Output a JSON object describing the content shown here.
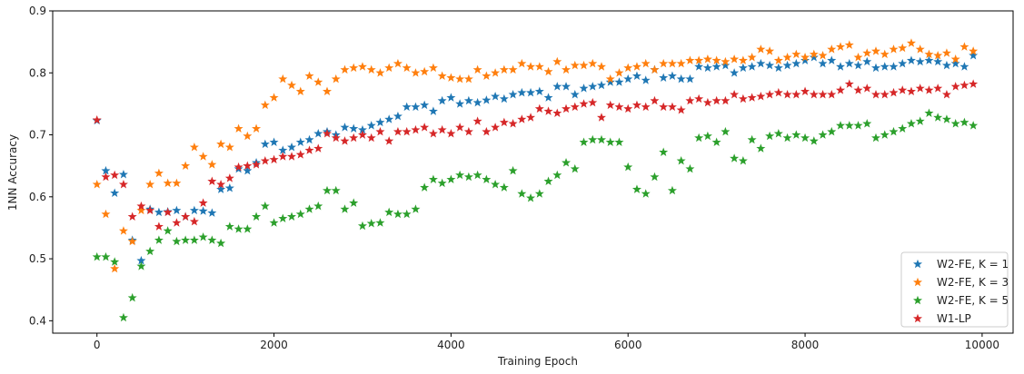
{
  "chart_data": {
    "type": "scatter",
    "title": "",
    "xlabel": "Training Epoch",
    "ylabel": "1NN Accuracy",
    "xlim": [
      -500,
      10350
    ],
    "ylim": [
      0.38,
      0.9
    ],
    "xticks": [
      0,
      2000,
      4000,
      6000,
      8000,
      10000
    ],
    "yticks": [
      0.4,
      0.5,
      0.6,
      0.7,
      0.8,
      0.9
    ],
    "xtick_labels": [
      "0",
      "2000",
      "4000",
      "6000",
      "8000",
      "10000"
    ],
    "ytick_labels": [
      "0.4",
      "0.5",
      "0.6",
      "0.7",
      "0.8",
      "0.9"
    ],
    "grid": false,
    "legend_position": "lower-right",
    "marker": "star",
    "x": [
      0,
      100,
      200,
      300,
      400,
      500,
      600,
      700,
      800,
      900,
      1000,
      1100,
      1200,
      1300,
      1400,
      1500,
      1600,
      1700,
      1800,
      1900,
      2000,
      2100,
      2200,
      2300,
      2400,
      2500,
      2600,
      2700,
      2800,
      2900,
      3000,
      3100,
      3200,
      3300,
      3400,
      3500,
      3600,
      3700,
      3800,
      3900,
      4000,
      4100,
      4200,
      4300,
      4400,
      4500,
      4600,
      4700,
      4800,
      4900,
      5000,
      5100,
      5200,
      5300,
      5400,
      5500,
      5600,
      5700,
      5800,
      5900,
      6000,
      6100,
      6200,
      6300,
      6400,
      6500,
      6600,
      6700,
      6800,
      6900,
      7000,
      7100,
      7200,
      7300,
      7400,
      7500,
      7600,
      7700,
      7800,
      7900,
      8000,
      8100,
      8200,
      8300,
      8400,
      8500,
      8600,
      8700,
      8800,
      8900,
      9000,
      9100,
      9200,
      9300,
      9400,
      9500,
      9600,
      9700,
      9800,
      9900
    ],
    "series": [
      {
        "name": "W2-FE, K = 1",
        "color": "#1f77b4",
        "values": [
          0.723,
          0.642,
          0.606,
          0.636,
          0.53,
          0.497,
          0.58,
          0.575,
          0.576,
          0.578,
          0.568,
          0.578,
          0.577,
          0.574,
          0.612,
          0.614,
          0.645,
          0.642,
          0.655,
          0.685,
          0.688,
          0.675,
          0.68,
          0.688,
          0.692,
          0.702,
          0.705,
          0.7,
          0.712,
          0.71,
          0.708,
          0.715,
          0.72,
          0.725,
          0.73,
          0.745,
          0.745,
          0.748,
          0.738,
          0.755,
          0.76,
          0.75,
          0.755,
          0.752,
          0.756,
          0.762,
          0.758,
          0.765,
          0.768,
          0.768,
          0.77,
          0.76,
          0.778,
          0.778,
          0.765,
          0.775,
          0.778,
          0.78,
          0.785,
          0.785,
          0.79,
          0.795,
          0.788,
          0.805,
          0.792,
          0.795,
          0.79,
          0.79,
          0.81,
          0.808,
          0.81,
          0.812,
          0.8,
          0.808,
          0.81,
          0.815,
          0.812,
          0.808,
          0.812,
          0.815,
          0.82,
          0.825,
          0.815,
          0.82,
          0.81,
          0.815,
          0.812,
          0.818,
          0.808,
          0.81,
          0.81,
          0.815,
          0.82,
          0.818,
          0.82,
          0.818,
          0.812,
          0.815,
          0.81,
          0.828
        ]
      },
      {
        "name": "W2-FE, K = 3",
        "color": "#ff7f0e",
        "values": [
          0.62,
          0.572,
          0.484,
          0.545,
          0.528,
          0.578,
          0.62,
          0.638,
          0.622,
          0.622,
          0.65,
          0.68,
          0.665,
          0.652,
          0.685,
          0.68,
          0.71,
          0.698,
          0.71,
          0.748,
          0.76,
          0.79,
          0.78,
          0.77,
          0.795,
          0.785,
          0.77,
          0.79,
          0.805,
          0.808,
          0.81,
          0.805,
          0.8,
          0.808,
          0.815,
          0.808,
          0.8,
          0.802,
          0.808,
          0.795,
          0.792,
          0.79,
          0.79,
          0.805,
          0.795,
          0.8,
          0.805,
          0.805,
          0.815,
          0.81,
          0.81,
          0.802,
          0.818,
          0.805,
          0.812,
          0.812,
          0.815,
          0.81,
          0.79,
          0.8,
          0.808,
          0.81,
          0.815,
          0.805,
          0.815,
          0.815,
          0.815,
          0.82,
          0.82,
          0.822,
          0.82,
          0.818,
          0.822,
          0.82,
          0.825,
          0.838,
          0.835,
          0.82,
          0.825,
          0.83,
          0.825,
          0.83,
          0.828,
          0.838,
          0.842,
          0.845,
          0.825,
          0.832,
          0.835,
          0.83,
          0.838,
          0.84,
          0.848,
          0.838,
          0.83,
          0.828,
          0.832,
          0.822,
          0.842,
          0.835
        ]
      },
      {
        "name": "W2-FE, K = 5",
        "color": "#2ca02c",
        "values": [
          0.503,
          0.503,
          0.495,
          0.405,
          0.437,
          0.488,
          0.512,
          0.53,
          0.545,
          0.528,
          0.53,
          0.53,
          0.535,
          0.53,
          0.525,
          0.552,
          0.548,
          0.548,
          0.568,
          0.585,
          0.558,
          0.565,
          0.568,
          0.572,
          0.58,
          0.585,
          0.61,
          0.61,
          0.58,
          0.59,
          0.553,
          0.557,
          0.558,
          0.575,
          0.572,
          0.572,
          0.58,
          0.615,
          0.628,
          0.622,
          0.628,
          0.635,
          0.632,
          0.635,
          0.628,
          0.62,
          0.615,
          0.642,
          0.605,
          0.598,
          0.605,
          0.625,
          0.635,
          0.655,
          0.645,
          0.688,
          0.692,
          0.692,
          0.688,
          0.688,
          0.648,
          0.612,
          0.605,
          0.632,
          0.672,
          0.61,
          0.658,
          0.645,
          0.695,
          0.698,
          0.688,
          0.705,
          0.662,
          0.658,
          0.692,
          0.678,
          0.698,
          0.702,
          0.695,
          0.7,
          0.695,
          0.69,
          0.7,
          0.705,
          0.715,
          0.715,
          0.715,
          0.718,
          0.695,
          0.7,
          0.705,
          0.71,
          0.718,
          0.722,
          0.735,
          0.728,
          0.725,
          0.718,
          0.72,
          0.715
        ]
      },
      {
        "name": "W1-LP",
        "color": "#d62728",
        "values": [
          0.724,
          0.632,
          0.635,
          0.62,
          0.568,
          0.585,
          0.578,
          0.552,
          0.575,
          0.558,
          0.568,
          0.56,
          0.59,
          0.625,
          0.62,
          0.63,
          0.648,
          0.65,
          0.652,
          0.658,
          0.66,
          0.665,
          0.665,
          0.668,
          0.675,
          0.678,
          0.702,
          0.695,
          0.69,
          0.695,
          0.7,
          0.695,
          0.705,
          0.69,
          0.705,
          0.705,
          0.708,
          0.712,
          0.702,
          0.708,
          0.702,
          0.712,
          0.705,
          0.722,
          0.705,
          0.712,
          0.72,
          0.718,
          0.725,
          0.728,
          0.742,
          0.738,
          0.735,
          0.742,
          0.745,
          0.75,
          0.752,
          0.728,
          0.748,
          0.745,
          0.742,
          0.748,
          0.745,
          0.755,
          0.745,
          0.745,
          0.74,
          0.755,
          0.758,
          0.752,
          0.755,
          0.755,
          0.765,
          0.758,
          0.76,
          0.762,
          0.765,
          0.768,
          0.765,
          0.765,
          0.77,
          0.765,
          0.765,
          0.765,
          0.772,
          0.782,
          0.772,
          0.775,
          0.765,
          0.765,
          0.768,
          0.772,
          0.77,
          0.775,
          0.772,
          0.775,
          0.765,
          0.778,
          0.78,
          0.782
        ]
      }
    ]
  }
}
